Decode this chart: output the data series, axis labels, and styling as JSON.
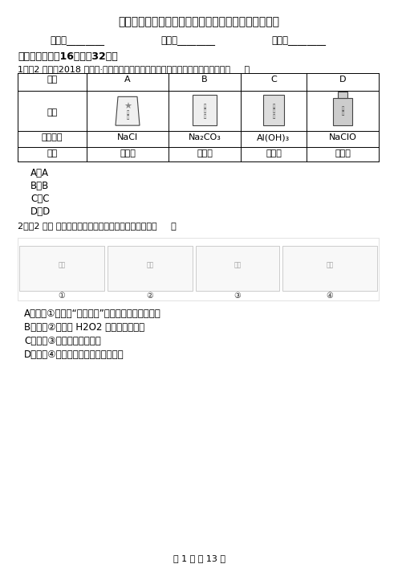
{
  "title": "河北省高二下学期第一次月考化学试卷（重点励志班）",
  "subtitle_fields": [
    "姓名：________",
    "班级：________",
    "成绩：________"
  ],
  "section1": "一、选择题（入16题；入32分）",
  "q1_prefix": "1．（2 分）（2018 高一上·红桥期末）下列用品的有效成分及用途对应错误的是（     ）",
  "table_headers": [
    "选项",
    "A",
    "B",
    "C",
    "D"
  ],
  "table_row1_label": "用品",
  "table_row2_label": "有效成分",
  "table_row2_data": [
    "NaCl",
    "Na₂CO₃",
    "Al(OH)₃",
    "NaClO"
  ],
  "table_row3_label": "用途",
  "table_row3_data": [
    "调味品",
    "发酵粉",
    "抗酸药",
    "消毒剂"
  ],
  "q1_options": [
    "A．A",
    "B．B",
    "C．C",
    "D．D"
  ],
  "q2_prefix": "2．（2 分） 下列装置及相应操作能达到实验目的的是（     ）",
  "q2_options": [
    "A．装置①可用于“海带提祉”实验中将海带灸烧成灰",
    "B．装置②可用于 H2O2 分解速率的测定",
    "C．装置③可用于氯气的收集",
    "D．装置④可用于实验室制取乙酸乙酯"
  ],
  "footer": "第 1 页 共 13 页",
  "bg_color": "#ffffff",
  "text_color": "#000000",
  "table_border_color": "#000000"
}
